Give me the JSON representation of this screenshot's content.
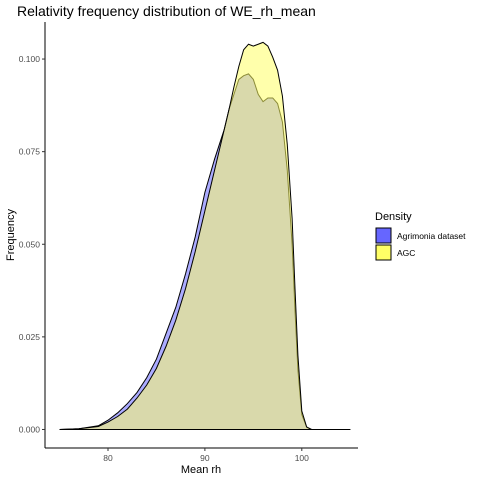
{
  "chart_data": {
    "type": "area",
    "title": "Relativity frequency distribution of WE_rh_mean",
    "xlabel": "Mean rh",
    "ylabel": "Frequency",
    "xlim": [
      73.5,
      105.8
    ],
    "ylim": [
      -0.005,
      0.11
    ],
    "x_ticks": [
      80,
      90,
      100
    ],
    "y_ticks": [
      0.0,
      0.025,
      0.05,
      0.075,
      0.1
    ],
    "y_tick_labels": [
      "0.000",
      "0.025",
      "0.050",
      "0.075",
      "0.100"
    ],
    "grid": false,
    "baseline_x_range": [
      75,
      105
    ],
    "legend": {
      "title": "Density",
      "position": "right",
      "entries": [
        {
          "label": "Agrimonia dataset",
          "color": "#6666ff"
        },
        {
          "label": "AGC",
          "color": "#ffff66"
        }
      ]
    },
    "series": [
      {
        "name": "Agrimonia dataset",
        "color": "#6666ff",
        "opacity": 0.55,
        "x": [
          75,
          77,
          79,
          80,
          81,
          82,
          83,
          84,
          85,
          86,
          87,
          88,
          89,
          89.5,
          90,
          91,
          92,
          92.5,
          93,
          93.5,
          94,
          94.5,
          95,
          95.5,
          96,
          96.5,
          97,
          97.5,
          98,
          98.5,
          99,
          99.3,
          99.6,
          100,
          100.5,
          101,
          103,
          105
        ],
        "y": [
          0.0,
          0.0002,
          0.001,
          0.0025,
          0.0045,
          0.007,
          0.01,
          0.014,
          0.019,
          0.026,
          0.033,
          0.042,
          0.052,
          0.058,
          0.064,
          0.073,
          0.081,
          0.0865,
          0.0905,
          0.0945,
          0.0955,
          0.096,
          0.0945,
          0.0905,
          0.0885,
          0.0895,
          0.0895,
          0.088,
          0.083,
          0.07,
          0.05,
          0.032,
          0.016,
          0.004,
          0.0006,
          0.0,
          0.0,
          0.0
        ]
      },
      {
        "name": "AGC",
        "color": "#ffff66",
        "opacity": 0.55,
        "x": [
          75,
          77,
          79,
          80,
          81,
          82,
          83,
          84,
          85,
          86,
          87,
          88,
          89,
          90,
          91,
          92,
          92.5,
          93,
          93.5,
          94,
          94.5,
          95,
          95.5,
          96,
          96.5,
          97,
          97.5,
          98,
          98.5,
          99,
          99.3,
          99.6,
          100,
          100.5,
          101,
          103,
          105
        ],
        "y": [
          0.0,
          0.0002,
          0.0008,
          0.002,
          0.0035,
          0.0055,
          0.0085,
          0.012,
          0.0165,
          0.0225,
          0.0295,
          0.038,
          0.048,
          0.059,
          0.07,
          0.081,
          0.0865,
          0.0925,
          0.098,
          0.1025,
          0.104,
          0.1035,
          0.104,
          0.1045,
          0.1035,
          0.1005,
          0.097,
          0.09,
          0.077,
          0.057,
          0.038,
          0.02,
          0.005,
          0.0007,
          0.0,
          0.0,
          0.0
        ]
      }
    ]
  }
}
